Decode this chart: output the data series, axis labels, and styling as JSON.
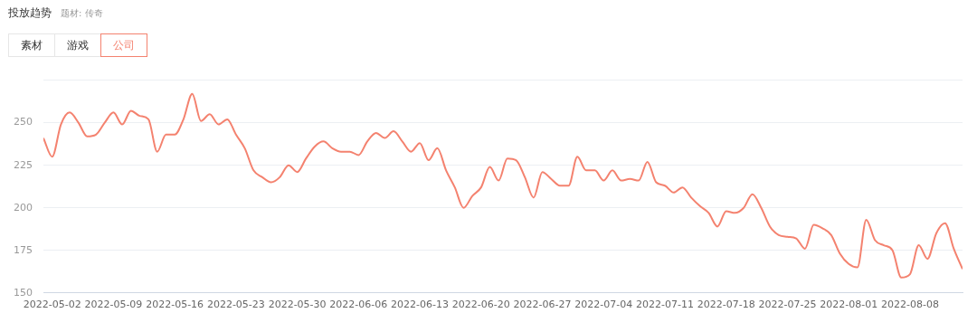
{
  "chart_data": {
    "type": "line",
    "title": "投放趋势",
    "subtitle": "题材: 传奇",
    "annotations": [
      "素材",
      "游戏",
      "公司"
    ],
    "x": [
      "2022-05-01",
      "2022-05-02",
      "2022-05-03",
      "2022-05-04",
      "2022-05-05",
      "2022-05-06",
      "2022-05-07",
      "2022-05-08",
      "2022-05-09",
      "2022-05-10",
      "2022-05-11",
      "2022-05-12",
      "2022-05-13",
      "2022-05-14",
      "2022-05-15",
      "2022-05-16",
      "2022-05-17",
      "2022-05-18",
      "2022-05-19",
      "2022-05-20",
      "2022-05-21",
      "2022-05-22",
      "2022-05-23",
      "2022-05-24",
      "2022-05-25",
      "2022-05-26",
      "2022-05-27",
      "2022-05-28",
      "2022-05-29",
      "2022-05-30",
      "2022-05-31",
      "2022-06-01",
      "2022-06-02",
      "2022-06-03",
      "2022-06-04",
      "2022-06-05",
      "2022-06-06",
      "2022-06-07",
      "2022-06-08",
      "2022-06-09",
      "2022-06-10",
      "2022-06-11",
      "2022-06-12",
      "2022-06-13",
      "2022-06-14",
      "2022-06-15",
      "2022-06-16",
      "2022-06-17",
      "2022-06-18",
      "2022-06-19",
      "2022-06-20",
      "2022-06-21",
      "2022-06-22",
      "2022-06-23",
      "2022-06-24",
      "2022-06-25",
      "2022-06-26",
      "2022-06-27",
      "2022-06-28",
      "2022-06-29",
      "2022-06-30",
      "2022-07-01",
      "2022-07-02",
      "2022-07-03",
      "2022-07-04",
      "2022-07-05",
      "2022-07-06",
      "2022-07-07",
      "2022-07-08",
      "2022-07-09",
      "2022-07-10",
      "2022-07-11",
      "2022-07-12",
      "2022-07-13",
      "2022-07-14",
      "2022-07-15",
      "2022-07-16",
      "2022-07-17",
      "2022-07-18",
      "2022-07-19",
      "2022-07-20",
      "2022-07-21",
      "2022-07-22",
      "2022-07-23",
      "2022-07-24",
      "2022-07-25",
      "2022-07-26",
      "2022-07-27",
      "2022-07-28",
      "2022-07-29",
      "2022-07-30",
      "2022-07-31",
      "2022-08-01",
      "2022-08-02",
      "2022-08-03",
      "2022-08-04",
      "2022-08-05",
      "2022-08-06",
      "2022-08-07",
      "2022-08-08",
      "2022-08-09",
      "2022-08-10",
      "2022-08-11",
      "2022-08-12",
      "2022-08-13",
      "2022-08-14"
    ],
    "series": [
      {
        "color": "#f4826f",
        "values": [
          241,
          230,
          249,
          256,
          250,
          242,
          243,
          250,
          256,
          249,
          257,
          254,
          252,
          233,
          243,
          243,
          252,
          267,
          251,
          255,
          249,
          252,
          243,
          235,
          222,
          218,
          215,
          218,
          225,
          221,
          229,
          236,
          239,
          235,
          233,
          233,
          231,
          239,
          244,
          241,
          245,
          239,
          233,
          238,
          228,
          235,
          222,
          212,
          200,
          207,
          212,
          224,
          216,
          229,
          228,
          218,
          206,
          221,
          217,
          213,
          213,
          230,
          222,
          222,
          216,
          222,
          216,
          217,
          216,
          227,
          215,
          213,
          209,
          212,
          206,
          201,
          197,
          189,
          198,
          197,
          200,
          208,
          200,
          189,
          184,
          183,
          182,
          176,
          190,
          188,
          184,
          173,
          167,
          165,
          193,
          181,
          178,
          175,
          159,
          161,
          178,
          170,
          185,
          191,
          176,
          164
        ]
      }
    ],
    "xlim": [
      "2022-05-01",
      "2022-08-14"
    ],
    "xticks": [
      "2022-05-02",
      "2022-05-09",
      "2022-05-16",
      "2022-05-23",
      "2022-05-30",
      "2022-06-06",
      "2022-06-13",
      "2022-06-20",
      "2022-06-27",
      "2022-07-04",
      "2022-07-11",
      "2022-07-18",
      "2022-07-25",
      "2022-08-01",
      "2022-08-08"
    ],
    "ylim": [
      150,
      275
    ],
    "yticks": [
      150,
      175,
      200,
      225,
      250,
      {
        "value": 275,
        "label": null
      }
    ],
    "grid": "y",
    "legend": false,
    "marker": "none",
    "line_style": "solid"
  }
}
